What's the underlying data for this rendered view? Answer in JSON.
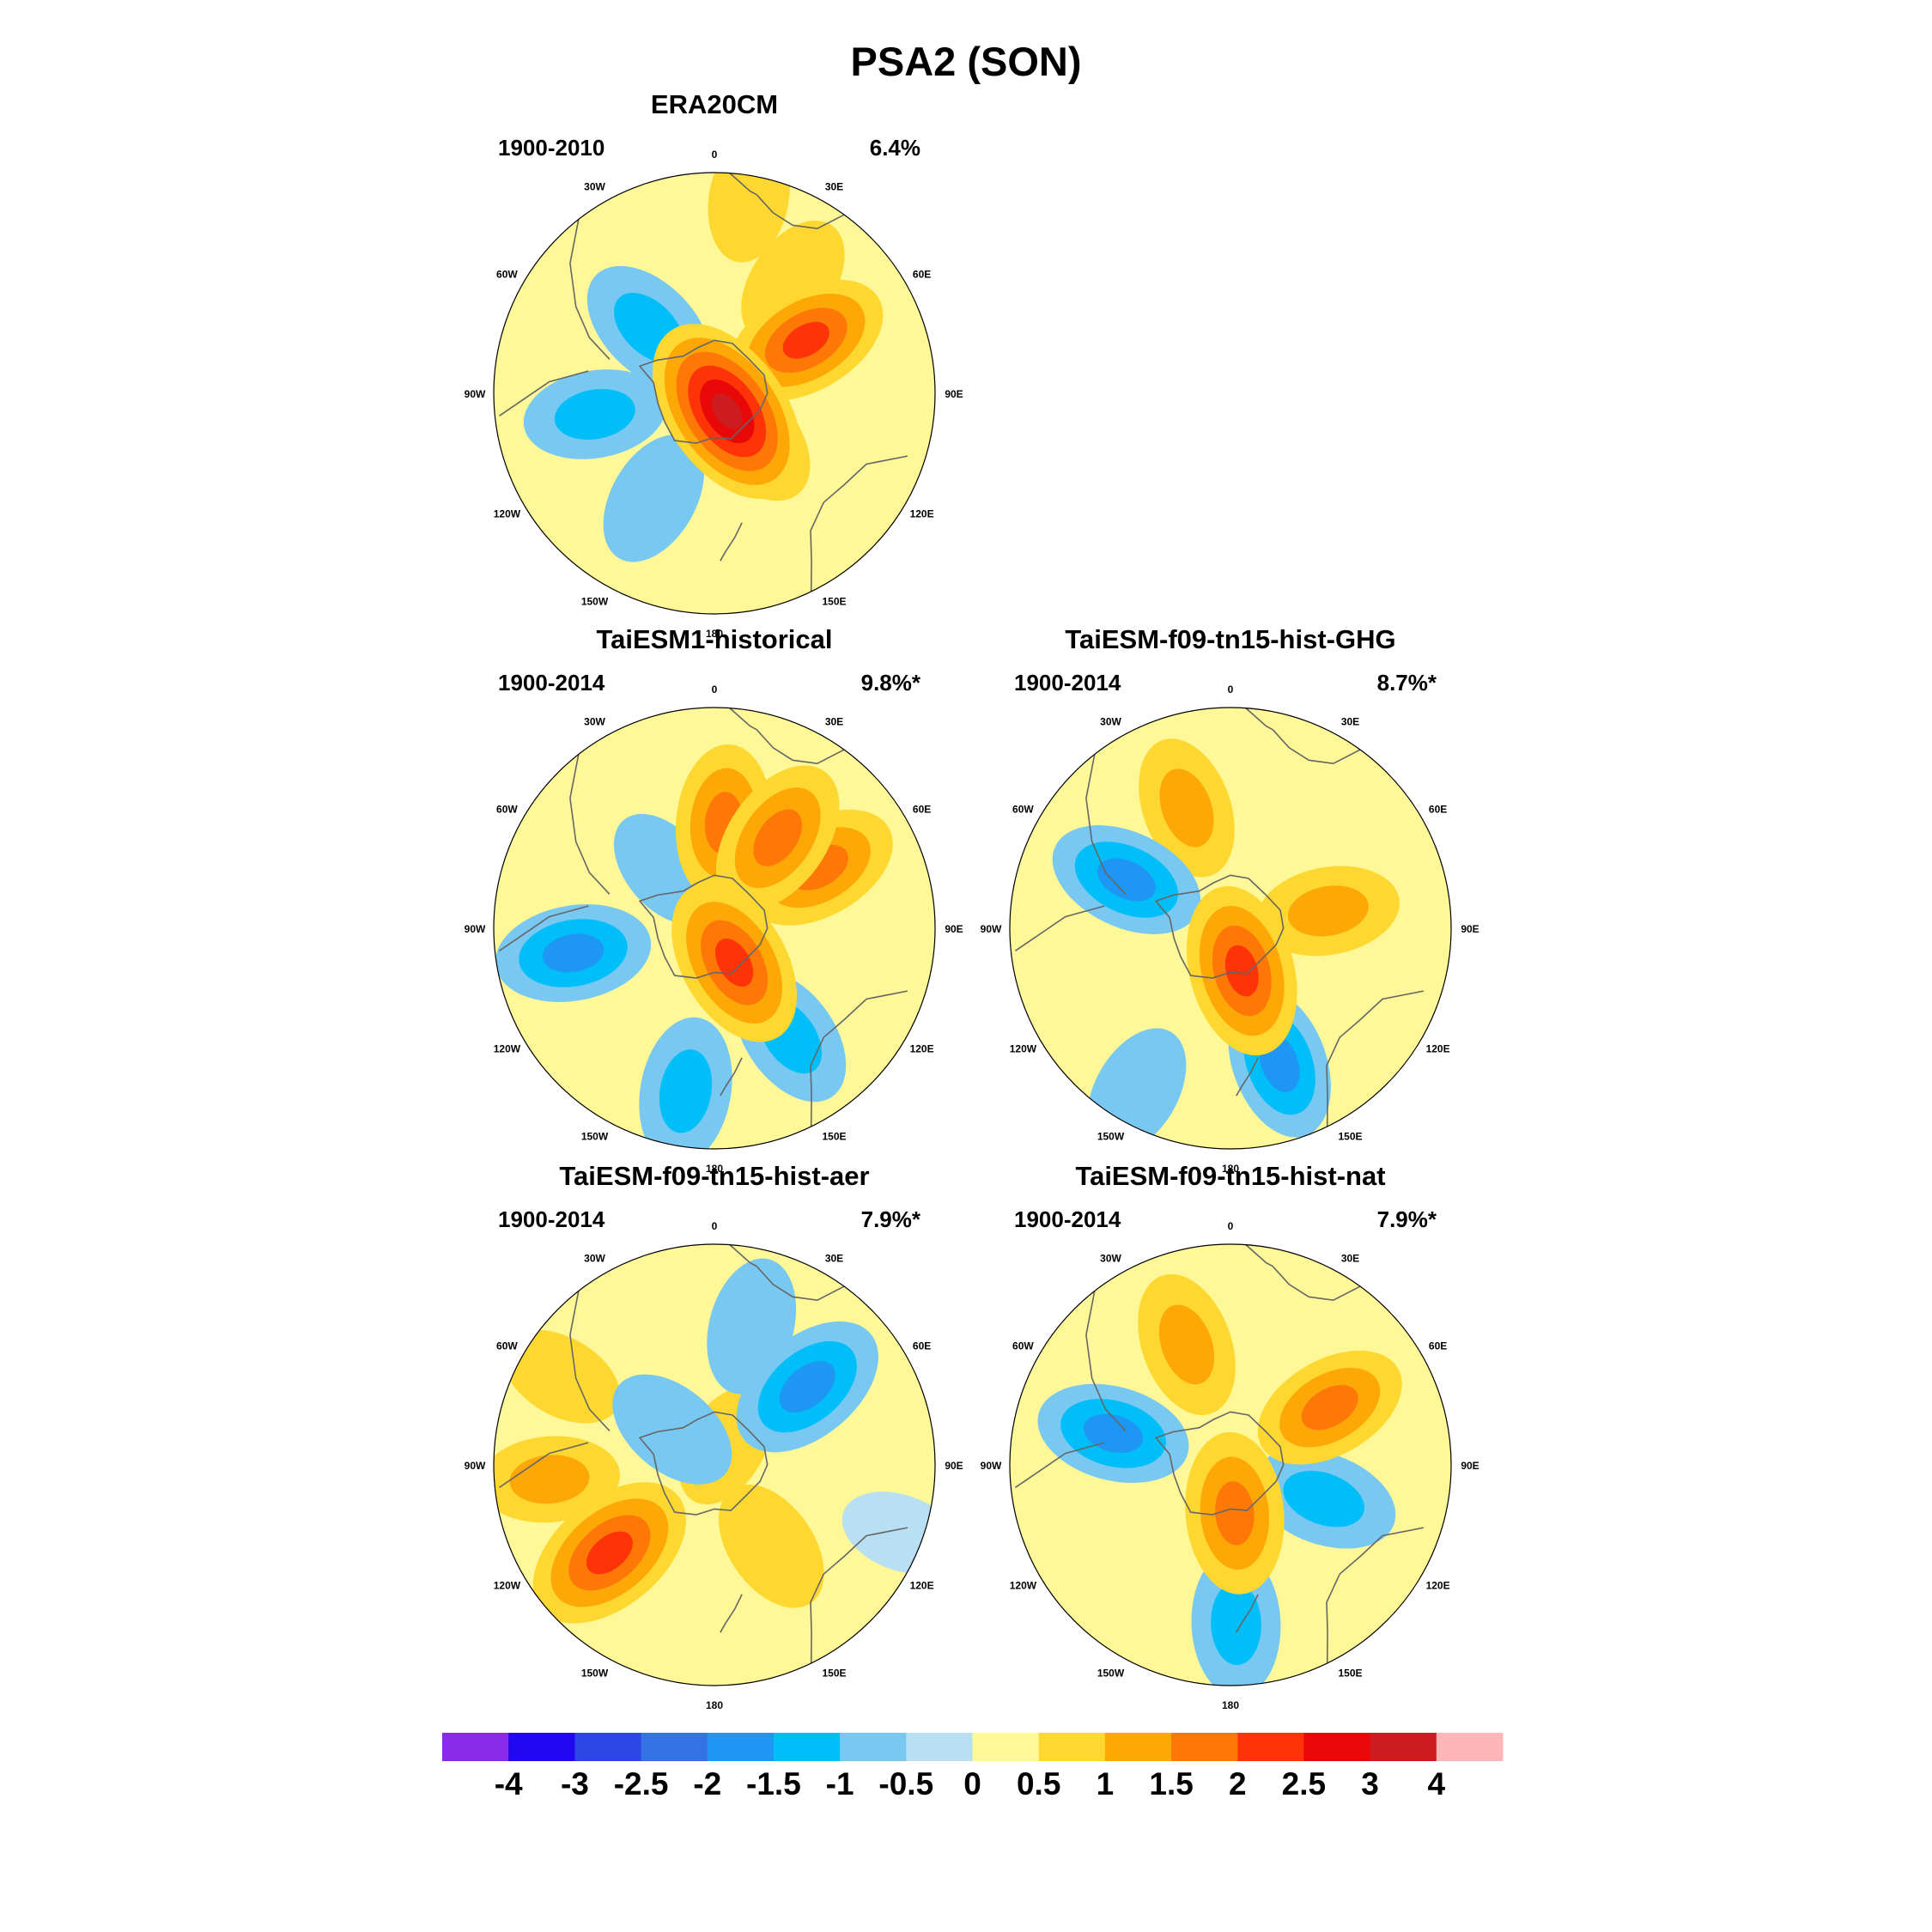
{
  "figure": {
    "title": "PSA2 (SON)"
  },
  "panels": [
    {
      "id": "era20cm",
      "title": "ERA20CM",
      "period": "1900-2010",
      "variance": "6.4%",
      "centers": [
        {
          "lon": 145,
          "colat": 0.1,
          "value": 3.1
        },
        {
          "lon": 140,
          "colat": 0.25,
          "value": 1.4
        },
        {
          "lon": 60,
          "colat": 0.48,
          "value": 2.0
        },
        {
          "lon": 35,
          "colat": 0.62,
          "value": 0.8
        },
        {
          "lon": -45,
          "colat": 0.42,
          "value": -1.3
        },
        {
          "lon": -100,
          "colat": 0.55,
          "value": -1.1
        },
        {
          "lon": -150,
          "colat": 0.55,
          "value": -0.9
        },
        {
          "lon": 10,
          "colat": 0.9,
          "value": 0.6
        },
        {
          "lon": 95,
          "colat": 0.85,
          "value": 0.3
        }
      ]
    },
    {
      "id": "taiesm1-historical",
      "title": "TaiESM1-historical",
      "period": "1900-2014",
      "variance": "9.8%*",
      "centers": [
        {
          "lon": 150,
          "colat": 0.18,
          "value": 2.2
        },
        {
          "lon": 35,
          "colat": 0.5,
          "value": 1.8
        },
        {
          "lon": 5,
          "colat": 0.48,
          "value": 1.6
        },
        {
          "lon": 60,
          "colat": 0.55,
          "value": 1.7
        },
        {
          "lon": -100,
          "colat": 0.65,
          "value": -1.6
        },
        {
          "lon": -170,
          "colat": 0.75,
          "value": -1.3
        },
        {
          "lon": 145,
          "colat": 0.6,
          "value": -1.2
        },
        {
          "lon": -40,
          "colat": 0.35,
          "value": -0.5
        },
        {
          "lon": 120,
          "colat": 0.95,
          "value": 0.3
        }
      ]
    },
    {
      "id": "taiesm-ghg",
      "title": "TaiESM-f09-tn15-hist-GHG",
      "period": "1900-2014",
      "variance": "8.7%*",
      "centers": [
        {
          "lon": 165,
          "colat": 0.2,
          "value": 2.2
        },
        {
          "lon": -20,
          "colat": 0.58,
          "value": 1.1
        },
        {
          "lon": 80,
          "colat": 0.45,
          "value": 1.1
        },
        {
          "lon": -65,
          "colat": 0.52,
          "value": -1.6
        },
        {
          "lon": 160,
          "colat": 0.65,
          "value": -1.5
        },
        {
          "lon": -150,
          "colat": 0.85,
          "value": -0.8
        },
        {
          "lon": 40,
          "colat": 0.9,
          "value": 0.4
        },
        {
          "lon": 45,
          "colat": 0.1,
          "value": 0.3
        }
      ]
    },
    {
      "id": "taiesm-aer",
      "title": "TaiESM-f09-tn15-hist-aer",
      "period": "1900-2014",
      "variance": "7.9%*",
      "centers": [
        {
          "lon": -130,
          "colat": 0.62,
          "value": 2.4
        },
        {
          "lon": -95,
          "colat": 0.75,
          "value": 1.0
        },
        {
          "lon": 145,
          "colat": 0.45,
          "value": 0.9
        },
        {
          "lon": 50,
          "colat": 0.55,
          "value": -1.9
        },
        {
          "lon": 15,
          "colat": 0.65,
          "value": -0.9
        },
        {
          "lon": -50,
          "colat": 0.25,
          "value": -0.9
        },
        {
          "lon": 30,
          "colat": 0.1,
          "value": 0.5
        },
        {
          "lon": -60,
          "colat": 0.8,
          "value": 0.5
        },
        {
          "lon": 110,
          "colat": 0.9,
          "value": -0.3
        }
      ]
    },
    {
      "id": "taiesm-nat",
      "title": "TaiESM-f09-tn15-hist-nat",
      "period": "1900-2014",
      "variance": "7.9%*",
      "centers": [
        {
          "lon": 175,
          "colat": 0.22,
          "value": 1.8
        },
        {
          "lon": -20,
          "colat": 0.58,
          "value": 1.2
        },
        {
          "lon": 60,
          "colat": 0.52,
          "value": 1.6
        },
        {
          "lon": -75,
          "colat": 0.55,
          "value": -1.5
        },
        {
          "lon": 110,
          "colat": 0.45,
          "value": -1.3
        },
        {
          "lon": 178,
          "colat": 0.72,
          "value": -1.2
        },
        {
          "lon": 45,
          "colat": 0.12,
          "value": 0.3
        }
      ]
    }
  ],
  "lon_labels": [
    "0",
    "30E",
    "60E",
    "90E",
    "120E",
    "150E",
    "180",
    "150W",
    "120W",
    "90W",
    "60W",
    "30W"
  ],
  "colorbar": {
    "levels": [
      -4,
      -3,
      -2.5,
      -2,
      -1.5,
      -1,
      -0.5,
      0,
      0.5,
      1,
      1.5,
      2,
      2.5,
      3,
      4
    ],
    "labels": [
      "-4",
      "-3",
      "-2.5",
      "-2",
      "-1.5",
      "-1",
      "-0.5",
      "0",
      "0.5",
      "1",
      "1.5",
      "2",
      "2.5",
      "3",
      "4"
    ],
    "colors": [
      "#8a2be8",
      "#2208f0",
      "#2c46e8",
      "#3473e6",
      "#1e97f4",
      "#00bff8",
      "#78c8f2",
      "#b8e0f2",
      "#fef898",
      "#fed830",
      "#fea808",
      "#fe7808",
      "#fe3308",
      "#e80808",
      "#cc1c20",
      "#feb6b8"
    ]
  },
  "colors": {
    "coastline": "#666666",
    "map_border": "#000000"
  }
}
